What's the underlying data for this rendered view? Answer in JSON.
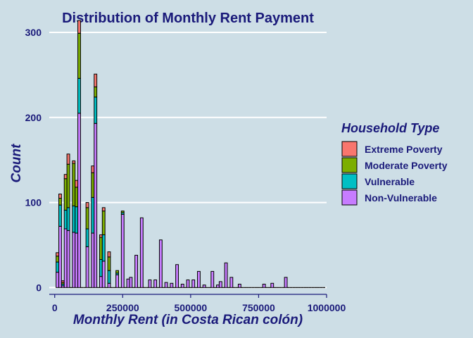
{
  "chart_data": {
    "type": "bar",
    "title": "Distribution of Monthly Rent Payment",
    "xlabel": "Monthly Rent (in Costa Rican colón)",
    "ylabel": "Count",
    "xlim": [
      -20000,
      1000000
    ],
    "ylim": [
      -8,
      305
    ],
    "x_ticks": [
      0,
      250000,
      500000,
      750000,
      1000000
    ],
    "x_tick_labels": [
      "0",
      "250000",
      "500000",
      "750000",
      "1000000"
    ],
    "y_ticks": [
      0,
      100,
      200,
      300
    ],
    "y_tick_labels": [
      "0",
      "100",
      "200",
      "300"
    ],
    "grid": "horizontal",
    "stacked": true,
    "bin_width": 10000,
    "x": [
      10000,
      20000,
      30000,
      40000,
      50000,
      60000,
      70000,
      80000,
      90000,
      100000,
      110000,
      120000,
      130000,
      140000,
      150000,
      160000,
      170000,
      180000,
      190000,
      200000,
      210000,
      220000,
      230000,
      240000,
      250000,
      260000,
      270000,
      280000,
      290000,
      300000,
      310000,
      320000,
      330000,
      340000,
      350000,
      360000,
      370000,
      380000,
      390000,
      400000,
      410000,
      420000,
      430000,
      440000,
      450000,
      460000,
      470000,
      480000,
      490000,
      500000,
      510000,
      520000,
      530000,
      540000,
      550000,
      560000,
      570000,
      580000,
      590000,
      600000,
      610000,
      620000,
      630000,
      640000,
      650000,
      660000,
      670000,
      680000,
      690000,
      700000,
      710000,
      720000,
      730000,
      740000,
      750000,
      760000,
      770000,
      780000,
      790000,
      800000,
      810000,
      820000,
      830000,
      840000,
      850000,
      860000,
      870000,
      880000,
      890000,
      900000,
      910000,
      920000,
      930000,
      940000,
      950000,
      960000,
      970000,
      980000,
      990000
    ],
    "legend_title": "Household Type",
    "legend_position": "right",
    "series": [
      {
        "name": "Extreme Poverty",
        "color": "#f8766d",
        "values": [
          4,
          5,
          2,
          5,
          12,
          0,
          3,
          8,
          15,
          0,
          0,
          6,
          0,
          8,
          15,
          0,
          3,
          4,
          0,
          6,
          0,
          0,
          0,
          0,
          0,
          0,
          0,
          0,
          0,
          0,
          0,
          0,
          0,
          0,
          0,
          0,
          0,
          0,
          0,
          0,
          0,
          0,
          0,
          0,
          0,
          0,
          0,
          0,
          0,
          0,
          0,
          0,
          0,
          0,
          0,
          0,
          0,
          0,
          0,
          0,
          0,
          0,
          0,
          0,
          0,
          0,
          0,
          0,
          0,
          0,
          0,
          0,
          0,
          0,
          0,
          0,
          0,
          0,
          0,
          0,
          0,
          0,
          0,
          0,
          0,
          0,
          0,
          0,
          0,
          0,
          0,
          0,
          0,
          0,
          0,
          0,
          0,
          0,
          0
        ]
      },
      {
        "name": "Moderate Poverty",
        "color": "#7cae00",
        "values": [
          7,
          8,
          2,
          37,
          51,
          0,
          50,
          23,
          53,
          0,
          0,
          25,
          0,
          29,
          12,
          0,
          26,
          28,
          0,
          16,
          0,
          0,
          3,
          0,
          2,
          0,
          0,
          0,
          0,
          0,
          0,
          0,
          0,
          0,
          0,
          0,
          0,
          0,
          0,
          0,
          0,
          0,
          0,
          0,
          0,
          0,
          0,
          0,
          0,
          0,
          0,
          0,
          0,
          0,
          0,
          0,
          0,
          0,
          0,
          0,
          0,
          0,
          0,
          0,
          0,
          0,
          0,
          0,
          0,
          0,
          0,
          0,
          0,
          0,
          0,
          0,
          0,
          0,
          0,
          0,
          0,
          0,
          0,
          0,
          0,
          0,
          0,
          0,
          0,
          0,
          0,
          0,
          0,
          0,
          0,
          0,
          0,
          0,
          0
        ]
      },
      {
        "name": "Vulnerable",
        "color": "#00bfc4",
        "values": [
          12,
          25,
          2,
          22,
          27,
          0,
          31,
          31,
          41,
          0,
          0,
          21,
          0,
          42,
          31,
          0,
          20,
          31,
          0,
          15,
          0,
          0,
          2,
          0,
          2,
          0,
          0,
          0,
          0,
          0,
          0,
          0,
          0,
          0,
          0,
          0,
          0,
          0,
          0,
          0,
          0,
          0,
          0,
          0,
          0,
          0,
          0,
          0,
          0,
          0,
          0,
          0,
          0,
          0,
          0,
          0,
          0,
          0,
          0,
          0,
          0,
          0,
          0,
          0,
          0,
          0,
          0,
          0,
          0,
          0,
          0,
          0,
          0,
          0,
          0,
          0,
          0,
          0,
          0,
          0,
          0,
          0,
          0,
          0,
          0,
          0,
          0,
          0,
          0,
          0,
          0,
          0,
          0,
          0,
          0,
          0,
          0,
          0,
          0
        ]
      },
      {
        "name": "Non-Vulnerable",
        "color": "#c77cff",
        "values": [
          18,
          72,
          2,
          69,
          67,
          0,
          65,
          64,
          205,
          0,
          0,
          48,
          0,
          64,
          193,
          0,
          13,
          31,
          0,
          5,
          0,
          0,
          15,
          0,
          86,
          0,
          10,
          12,
          0,
          38,
          0,
          82,
          0,
          0,
          9,
          0,
          9,
          0,
          56,
          0,
          6,
          0,
          5,
          0,
          27,
          0,
          4,
          0,
          9,
          0,
          9,
          0,
          19,
          0,
          3,
          0,
          0,
          19,
          0,
          3,
          7,
          0,
          29,
          0,
          12,
          0,
          0,
          4,
          0,
          0,
          0,
          0,
          0,
          0,
          0,
          0,
          4,
          0,
          0,
          5,
          0,
          0,
          0,
          0,
          12,
          0,
          0,
          0,
          0,
          0,
          0,
          0,
          0,
          0,
          0,
          0,
          0,
          0,
          0
        ]
      }
    ]
  }
}
